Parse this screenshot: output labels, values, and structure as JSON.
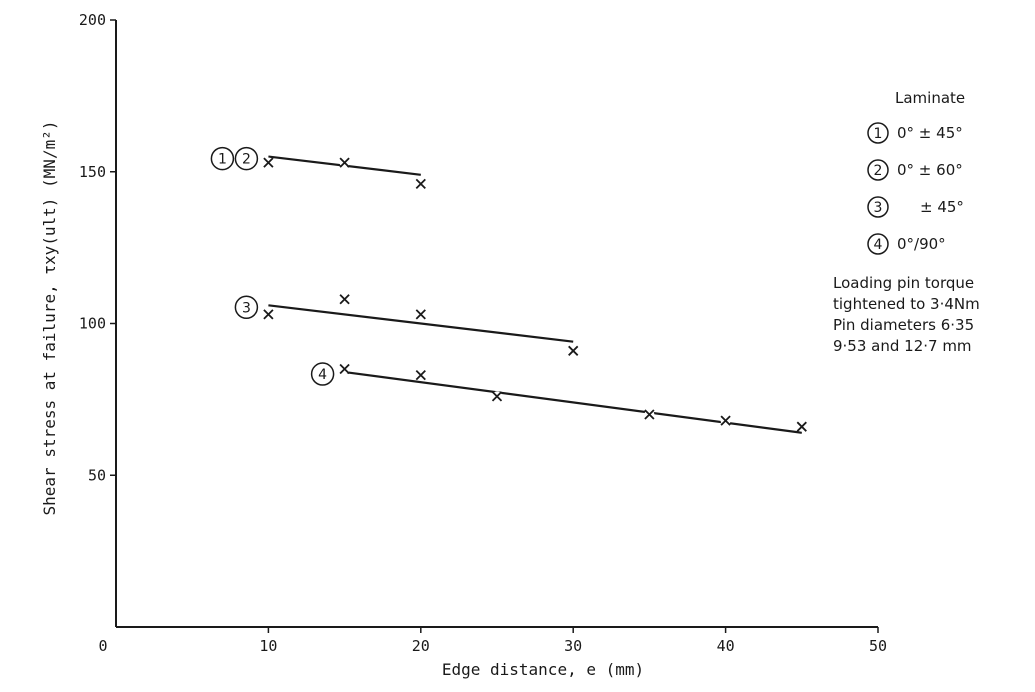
{
  "chart_data": {
    "type": "scatter",
    "xlabel": "Edge distance, e (mm)",
    "ylabel": "Shear stress at failure, τxy(ult) (MN/m²)",
    "xlim": [
      0,
      50
    ],
    "ylim": [
      0,
      200
    ],
    "xticks": [
      "0",
      "10",
      "20",
      "30",
      "40",
      "50"
    ],
    "yticks": [
      "50",
      "100",
      "150",
      "200"
    ],
    "grid": false,
    "series": [
      {
        "label": "1 2",
        "points": [
          [
            10,
            153
          ],
          [
            15,
            153
          ],
          [
            20,
            146
          ]
        ],
        "fit": [
          [
            10,
            155
          ],
          [
            20,
            149
          ]
        ]
      },
      {
        "label": "3",
        "points": [
          [
            10,
            103
          ],
          [
            15,
            108
          ],
          [
            20,
            103
          ],
          [
            30,
            91
          ]
        ],
        "fit": [
          [
            10,
            106
          ],
          [
            30,
            94
          ]
        ]
      },
      {
        "label": "4",
        "points": [
          [
            15,
            85
          ],
          [
            20,
            83
          ],
          [
            25,
            76
          ],
          [
            35,
            70
          ],
          [
            40,
            68
          ],
          [
            45,
            66
          ]
        ],
        "fit": [
          [
            15,
            84
          ],
          [
            45,
            64
          ]
        ]
      }
    ],
    "legend": {
      "title": "Laminate",
      "placement": "right",
      "entries": [
        {
          "num": "1",
          "text": "0° ± 45°"
        },
        {
          "num": "2",
          "text": "0° ± 60°"
        },
        {
          "num": "3",
          "text": "± 45°"
        },
        {
          "num": "4",
          "text": "0°/90°"
        }
      ]
    },
    "notes": [
      "Loading pin torque",
      "tightened to 3·4Nm",
      "Pin diameters 6·35",
      "9·53 and 12·7 mm"
    ]
  }
}
